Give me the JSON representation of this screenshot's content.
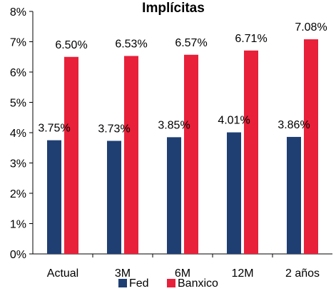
{
  "chart_data": {
    "type": "bar",
    "title": "Implícitas",
    "categories": [
      "Actual",
      "3M",
      "6M",
      "12M",
      "2 años"
    ],
    "series": [
      {
        "name": "Fed",
        "values": [
          3.75,
          3.73,
          3.85,
          4.01,
          3.86
        ],
        "labels": [
          "3.75%",
          "3.73%",
          "3.85%",
          "4.01%",
          "3.86%"
        ],
        "color": "#1f3f73"
      },
      {
        "name": "Banxico",
        "values": [
          6.5,
          6.53,
          6.57,
          6.71,
          7.08
        ],
        "labels": [
          "6.50%",
          "6.53%",
          "6.57%",
          "6.71%",
          "7.08%"
        ],
        "color": "#e8203a"
      }
    ],
    "ylim": [
      0,
      8
    ],
    "yticks": [
      0,
      1,
      2,
      3,
      4,
      5,
      6,
      7,
      8
    ],
    "ytick_labels": [
      "0%",
      "1%",
      "2%",
      "3%",
      "4%",
      "5%",
      "6%",
      "7%",
      "8%"
    ],
    "xlabel": "",
    "ylabel": "",
    "grid": false,
    "legend_position": "bottom"
  }
}
